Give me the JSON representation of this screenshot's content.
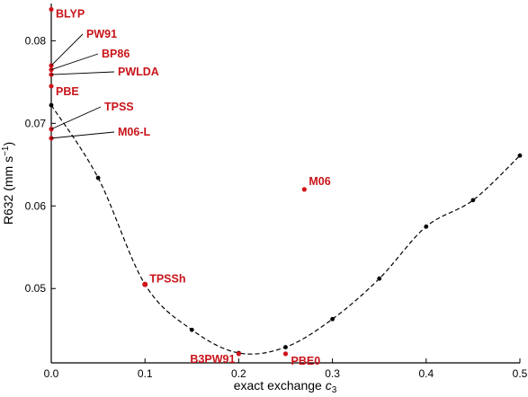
{
  "chart_data": {
    "type": "scatter",
    "xlabel_prefix": "exact exchange ",
    "xlabel_var": "c",
    "xlabel_sub": "3",
    "ylabel_main": "R632 (mm s",
    "ylabel_sup": "−1",
    "ylabel_close": ")",
    "xlim": [
      0,
      0.5
    ],
    "ylim": [
      0.041,
      0.0845
    ],
    "x_ticks": [
      0,
      0.1,
      0.2,
      0.3,
      0.4,
      0.5
    ],
    "x_tick_labels": [
      "0.0",
      "0.1",
      "0.2",
      "0.3",
      "0.4",
      "0.5"
    ],
    "y_ticks": [
      0.05,
      0.06,
      0.07,
      0.08
    ],
    "y_tick_labels": [
      "0.05",
      "0.06",
      "0.07",
      "0.08"
    ],
    "grid": false,
    "fit_series": {
      "x": [
        0,
        0.05,
        0.1,
        0.15,
        0.2,
        0.25,
        0.3,
        0.35,
        0.4,
        0.45,
        0.5
      ],
      "y": [
        0.0722,
        0.0634,
        0.0505,
        0.045,
        0.0422,
        0.0429,
        0.0463,
        0.0512,
        0.0575,
        0.0607,
        0.0661
      ],
      "color": "#000000",
      "style": "dashed"
    },
    "functionals": [
      {
        "label": "BLYP",
        "x": 0,
        "y": 0.0838
      },
      {
        "label": "PW91",
        "x": 0,
        "y": 0.077
      },
      {
        "label": "BP86",
        "x": 0,
        "y": 0.0765
      },
      {
        "label": "PWLDA",
        "x": 0,
        "y": 0.0759
      },
      {
        "label": "PBE",
        "x": 0,
        "y": 0.0745
      },
      {
        "label": "TPSS",
        "x": 0,
        "y": 0.0693
      },
      {
        "label": "M06-L",
        "x": 0,
        "y": 0.0682
      },
      {
        "label": "TPSSh",
        "x": 0.1,
        "y": 0.0505
      },
      {
        "label": "B3PW91",
        "x": 0.2,
        "y": 0.0421
      },
      {
        "label": "PBE0",
        "x": 0.25,
        "y": 0.0421
      },
      {
        "label": "M06",
        "x": 0.27,
        "y": 0.062
      }
    ],
    "functional_color": "#d0141a"
  }
}
